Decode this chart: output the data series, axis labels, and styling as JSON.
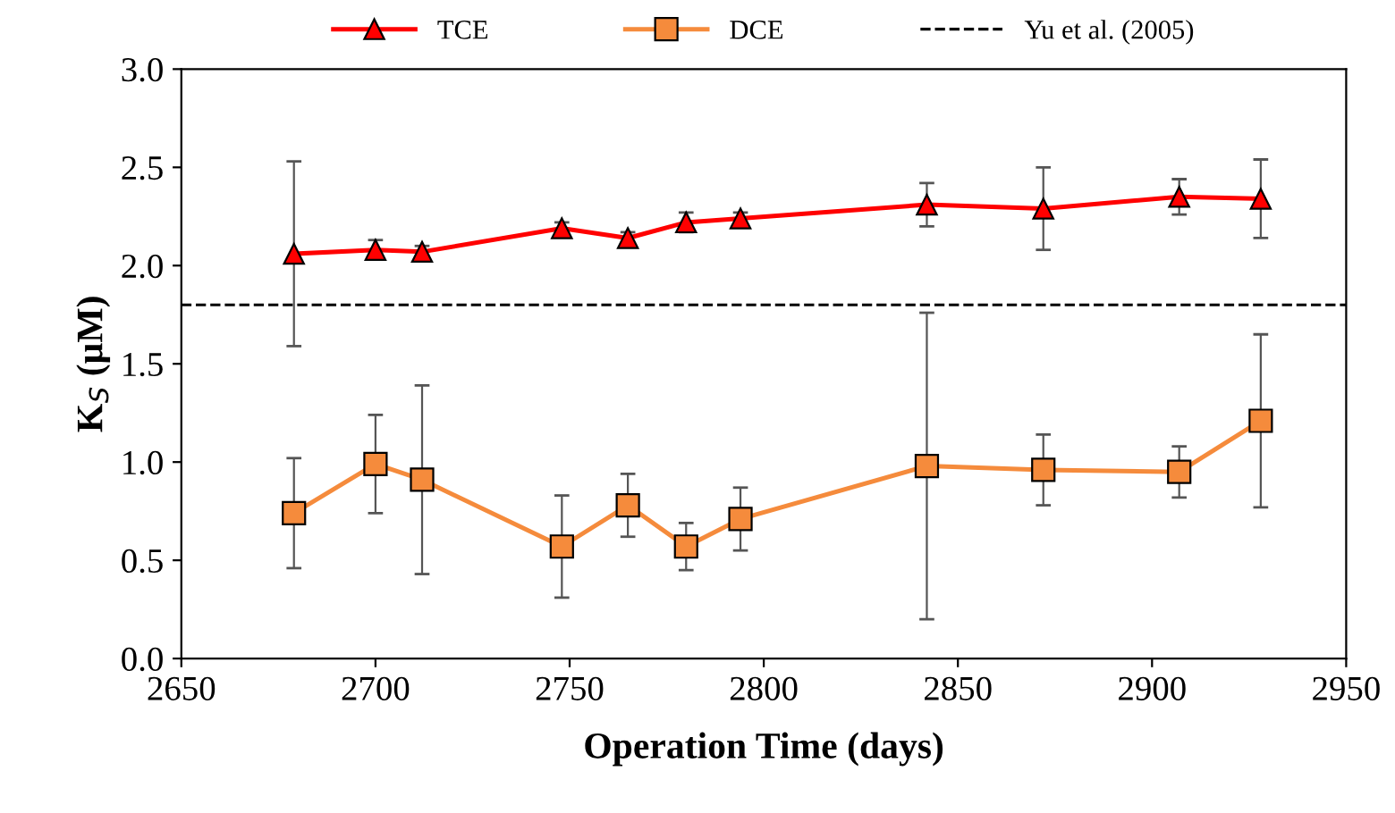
{
  "chart_data": {
    "type": "line",
    "xlabel": "Operation Time (days)",
    "ylabel": "K$_{S}$ (μM)",
    "x": [
      2679,
      2700,
      2712,
      2748,
      2765,
      2780,
      2794,
      2842,
      2872,
      2907,
      2928
    ],
    "series": [
      {
        "name": "TCE",
        "color": "#ff0000",
        "marker": "triangle",
        "values": [
          2.06,
          2.08,
          2.07,
          2.19,
          2.14,
          2.22,
          2.24,
          2.31,
          2.29,
          2.35,
          2.34
        ],
        "errors": [
          0.47,
          0.05,
          0.03,
          0.03,
          0.03,
          0.05,
          0.03,
          0.11,
          0.21,
          0.09,
          0.2
        ]
      },
      {
        "name": "DCE",
        "color": "#f58b3c",
        "marker": "square",
        "values": [
          0.74,
          0.99,
          0.91,
          0.57,
          0.78,
          0.57,
          0.71,
          0.98,
          0.96,
          0.95,
          1.21
        ],
        "errors": [
          0.28,
          0.25,
          0.48,
          0.26,
          0.16,
          0.12,
          0.16,
          0.78,
          0.18,
          0.13,
          0.44
        ]
      }
    ],
    "ref_lines": [
      {
        "axis": "y",
        "value": 1.8,
        "label": "Yu et al. (2005)",
        "color": "#000000",
        "line_style": "dashed"
      }
    ],
    "xlim": [
      2650,
      2950
    ],
    "xticks": [
      2650,
      2700,
      2750,
      2800,
      2850,
      2900,
      2950
    ],
    "ylim": [
      0,
      3
    ],
    "yticks": [
      {
        "value": 0,
        "label": "0.0"
      },
      {
        "value": 0.5,
        "label": "0.5"
      },
      {
        "value": 1,
        "label": "1.0"
      },
      {
        "value": 1.5,
        "label": "1.5"
      },
      {
        "value": 2,
        "label": "2.0"
      },
      {
        "value": 2.5,
        "label": "2.5"
      },
      {
        "value": 3,
        "label": "3.0"
      }
    ],
    "grid": false,
    "legend": "top"
  }
}
